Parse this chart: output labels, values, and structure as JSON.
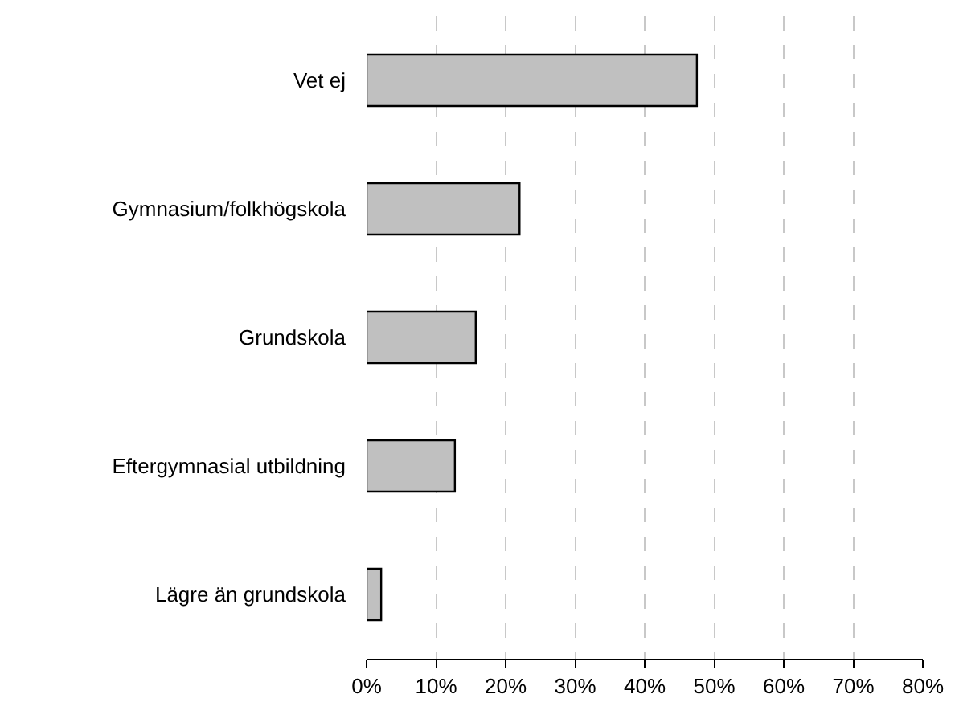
{
  "chart_data": {
    "type": "bar",
    "orientation": "horizontal",
    "categories": [
      "Vet ej",
      "Gymnasium/folkhögskola",
      "Grundskola",
      "Eftergymnasial utbildning",
      "Lägre än grundskola"
    ],
    "values": [
      47.5,
      22,
      15.7,
      12.7,
      2.1
    ],
    "color": "#c0c0c0",
    "xlim": [
      0,
      80
    ],
    "xticks": [
      {
        "value": 0,
        "label": "0%"
      },
      {
        "value": 10,
        "label": "10%"
      },
      {
        "value": 20,
        "label": "20%"
      },
      {
        "value": 30,
        "label": "30%"
      },
      {
        "value": 40,
        "label": "40%"
      },
      {
        "value": 50,
        "label": "50%"
      },
      {
        "value": 60,
        "label": "60%"
      },
      {
        "value": 70,
        "label": "70%"
      },
      {
        "value": 80,
        "label": "80%"
      }
    ],
    "grid": "x"
  }
}
